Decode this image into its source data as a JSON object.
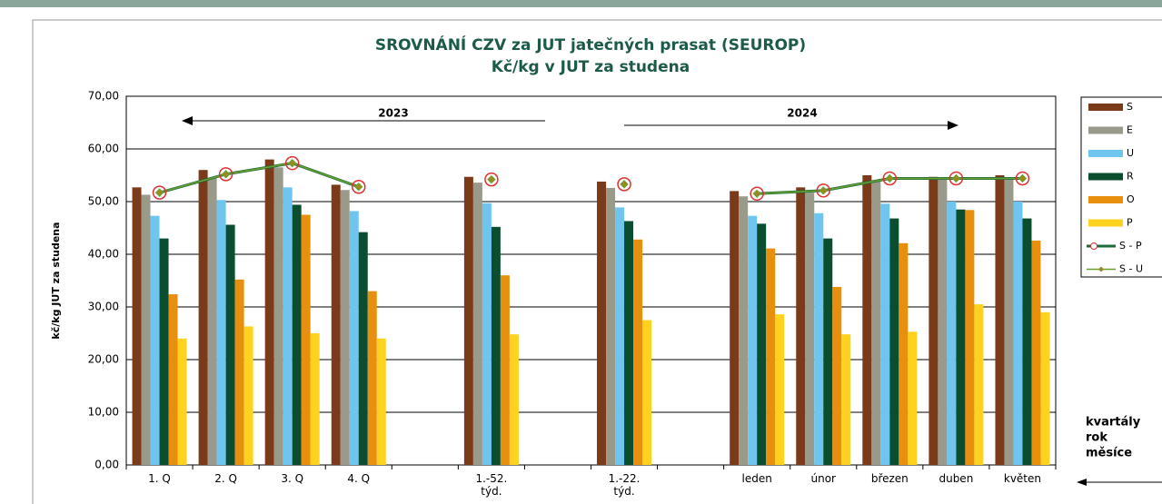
{
  "chart_data": {
    "type": "bar",
    "title": "SROVNÁNÍ  CZV za JUT jatečných prasat (SEUROP)",
    "subtitle": "Kč/kg v JUT za studena",
    "y_label": "kč/kg  JUT za studena",
    "annotations": [
      "2023",
      "2024",
      "kvartály",
      "rok",
      "měsíce"
    ],
    "categories": [
      "1. Q",
      "2. Q",
      "3. Q",
      "4. Q",
      null,
      "1.-52. týd.",
      null,
      "1.-22. týd.",
      null,
      "leden",
      "únor",
      "březen",
      "duben",
      "květen"
    ],
    "series": [
      {
        "name": "S",
        "color": "#7b3a1a",
        "values": [
          52.7,
          56.0,
          58.0,
          53.2,
          null,
          54.7,
          null,
          53.8,
          null,
          52.0,
          52.7,
          55.0,
          54.7,
          55.0
        ]
      },
      {
        "name": "E",
        "color": "#9a9a8a",
        "values": [
          51.3,
          54.5,
          56.5,
          52.2,
          null,
          53.6,
          null,
          52.6,
          null,
          51.0,
          51.7,
          54.0,
          54.2,
          54.2
        ]
      },
      {
        "name": "U",
        "color": "#6ec6f0",
        "values": [
          47.3,
          50.3,
          52.7,
          48.2,
          null,
          49.7,
          null,
          48.9,
          null,
          47.3,
          47.8,
          49.6,
          50.0,
          50.0
        ]
      },
      {
        "name": "R",
        "color": "#0b4d2f",
        "values": [
          43.0,
          45.6,
          49.4,
          44.2,
          null,
          45.2,
          null,
          46.3,
          null,
          45.8,
          43.0,
          46.8,
          48.5,
          46.8
        ]
      },
      {
        "name": "O",
        "color": "#e8900e",
        "values": [
          32.4,
          35.2,
          47.5,
          33.0,
          null,
          36.0,
          null,
          42.8,
          null,
          41.1,
          33.8,
          42.1,
          48.4,
          42.6
        ]
      },
      {
        "name": "P",
        "color": "#ffd21f",
        "values": [
          24.0,
          26.3,
          25.0,
          24.0,
          null,
          24.8,
          null,
          27.5,
          null,
          28.6,
          24.8,
          25.3,
          30.5,
          29.0
        ]
      },
      {
        "name": "S - P",
        "type": "line",
        "color": "#1d6b3a",
        "marker": "circle",
        "marker_color": "#e03030",
        "values": [
          51.7,
          55.2,
          57.3,
          52.8,
          null,
          54.2,
          null,
          53.3,
          null,
          51.5,
          52.1,
          54.4,
          54.4,
          54.4
        ]
      },
      {
        "name": "S - U",
        "type": "line",
        "color": "#6aa030",
        "marker": "diamond",
        "marker_color": "#9a8a20",
        "values": [
          51.7,
          55.2,
          57.3,
          52.8,
          null,
          54.2,
          null,
          53.3,
          null,
          51.5,
          52.1,
          54.4,
          54.4,
          54.4
        ]
      }
    ],
    "ylim": [
      0,
      70
    ],
    "yticks": [
      {
        "value": 0,
        "label": "0,00"
      },
      {
        "value": 10,
        "label": "10,00"
      },
      {
        "value": 20,
        "label": "20,00"
      },
      {
        "value": 30,
        "label": "30,00"
      },
      {
        "value": 40,
        "label": "40,00"
      },
      {
        "value": 50,
        "label": "50,00"
      },
      {
        "value": 60,
        "label": "60,00"
      },
      {
        "value": 70,
        "label": "70,00"
      }
    ],
    "grid": true,
    "legend": "right"
  }
}
